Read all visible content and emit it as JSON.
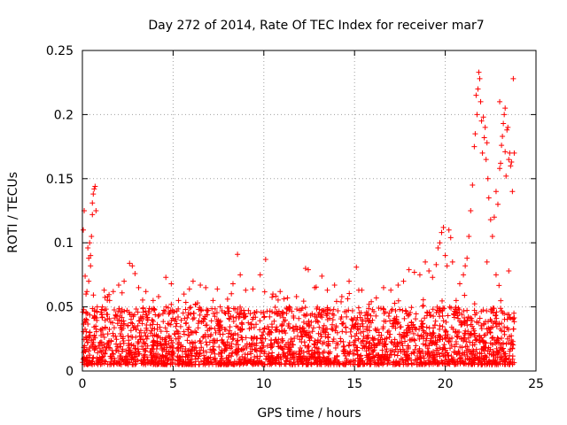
{
  "chart_data": {
    "type": "scatter",
    "title": "Day 272 of 2014, Rate Of TEC Index for receiver mar7",
    "xlabel": "GPS time / hours",
    "ylabel": "ROTI / TECUs",
    "xlim": [
      0,
      25
    ],
    "ylim": [
      0,
      0.25
    ],
    "xticks": [
      0,
      5,
      10,
      15,
      20,
      25
    ],
    "xtick_labels": [
      "0",
      "5",
      "10",
      "15",
      "20",
      "25"
    ],
    "yticks": [
      0,
      0.05,
      0.1,
      0.15,
      0.2,
      0.25
    ],
    "ytick_labels": [
      "0",
      "0.05",
      "0.1",
      "0.15",
      "0.2",
      "0.25"
    ],
    "grid": true,
    "marker": "+",
    "color": "#ff0000",
    "series": [
      {
        "name": "ROTI",
        "points": [
          [
            0.05,
            0.11
          ],
          [
            0.1,
            0.125
          ],
          [
            0.15,
            0.074
          ],
          [
            0.2,
            0.06
          ],
          [
            0.3,
            0.096
          ],
          [
            0.35,
            0.088
          ],
          [
            0.4,
            0.1
          ],
          [
            0.45,
            0.082
          ],
          [
            0.5,
            0.105
          ],
          [
            0.55,
            0.131
          ],
          [
            0.6,
            0.138
          ],
          [
            0.65,
            0.142
          ],
          [
            0.7,
            0.144
          ],
          [
            0.75,
            0.125
          ],
          [
            0.55,
            0.122
          ],
          [
            0.45,
            0.09
          ],
          [
            0.35,
            0.07
          ],
          [
            0.25,
            0.062
          ],
          [
            1.2,
            0.063
          ],
          [
            1.4,
            0.058
          ],
          [
            1.5,
            0.055
          ],
          [
            1.7,
            0.062
          ],
          [
            2.0,
            0.067
          ],
          [
            2.3,
            0.07
          ],
          [
            2.6,
            0.084
          ],
          [
            2.75,
            0.082
          ],
          [
            2.9,
            0.076
          ],
          [
            3.1,
            0.065
          ],
          [
            3.5,
            0.062
          ],
          [
            3.9,
            0.055
          ],
          [
            4.2,
            0.058
          ],
          [
            4.6,
            0.073
          ],
          [
            4.9,
            0.068
          ],
          [
            5.3,
            0.055
          ],
          [
            5.6,
            0.06
          ],
          [
            5.9,
            0.064
          ],
          [
            6.1,
            0.07
          ],
          [
            6.5,
            0.067
          ],
          [
            6.8,
            0.065
          ],
          [
            7.2,
            0.055
          ],
          [
            7.6,
            0.05
          ],
          [
            8.0,
            0.056
          ],
          [
            8.3,
            0.068
          ],
          [
            8.55,
            0.091
          ],
          [
            8.7,
            0.075
          ],
          [
            9.0,
            0.063
          ],
          [
            9.4,
            0.064
          ],
          [
            9.8,
            0.075
          ],
          [
            10.1,
            0.087
          ],
          [
            10.5,
            0.06
          ],
          [
            10.9,
            0.062
          ],
          [
            11.3,
            0.057
          ],
          [
            11.8,
            0.058
          ],
          [
            12.3,
            0.08
          ],
          [
            12.45,
            0.079
          ],
          [
            12.8,
            0.065
          ],
          [
            13.2,
            0.074
          ],
          [
            13.5,
            0.063
          ],
          [
            13.9,
            0.067
          ],
          [
            14.3,
            0.058
          ],
          [
            14.7,
            0.07
          ],
          [
            15.1,
            0.081
          ],
          [
            15.4,
            0.063
          ],
          [
            15.8,
            0.052
          ],
          [
            16.2,
            0.057
          ],
          [
            16.6,
            0.065
          ],
          [
            17.0,
            0.063
          ],
          [
            17.4,
            0.067
          ],
          [
            17.7,
            0.07
          ],
          [
            18.0,
            0.079
          ],
          [
            18.3,
            0.077
          ],
          [
            18.6,
            0.075
          ],
          [
            18.9,
            0.085
          ],
          [
            19.1,
            0.078
          ],
          [
            19.3,
            0.073
          ],
          [
            19.5,
            0.083
          ],
          [
            19.6,
            0.096
          ],
          [
            19.7,
            0.1
          ],
          [
            19.8,
            0.108
          ],
          [
            19.9,
            0.112
          ],
          [
            20.0,
            0.09
          ],
          [
            20.1,
            0.082
          ],
          [
            20.2,
            0.11
          ],
          [
            20.3,
            0.104
          ],
          [
            20.4,
            0.085
          ],
          [
            20.6,
            0.055
          ],
          [
            20.8,
            0.068
          ],
          [
            21.0,
            0.075
          ],
          [
            21.1,
            0.082
          ],
          [
            21.2,
            0.088
          ],
          [
            21.3,
            0.105
          ],
          [
            21.4,
            0.125
          ],
          [
            21.5,
            0.145
          ],
          [
            21.6,
            0.175
          ],
          [
            21.65,
            0.185
          ],
          [
            21.7,
            0.215
          ],
          [
            21.75,
            0.2
          ],
          [
            21.8,
            0.22
          ],
          [
            21.85,
            0.233
          ],
          [
            21.9,
            0.228
          ],
          [
            21.95,
            0.21
          ],
          [
            22.0,
            0.195
          ],
          [
            22.05,
            0.17
          ],
          [
            22.1,
            0.198
          ],
          [
            22.15,
            0.182
          ],
          [
            22.2,
            0.19
          ],
          [
            22.25,
            0.165
          ],
          [
            22.3,
            0.178
          ],
          [
            22.35,
            0.15
          ],
          [
            22.4,
            0.135
          ],
          [
            22.5,
            0.118
          ],
          [
            22.6,
            0.105
          ],
          [
            22.7,
            0.12
          ],
          [
            22.8,
            0.14
          ],
          [
            22.9,
            0.13
          ],
          [
            23.0,
            0.158
          ],
          [
            23.05,
            0.162
          ],
          [
            23.1,
            0.176
          ],
          [
            23.15,
            0.183
          ],
          [
            23.2,
            0.193
          ],
          [
            23.25,
            0.2
          ],
          [
            23.3,
            0.171
          ],
          [
            23.35,
            0.152
          ],
          [
            23.4,
            0.188
          ],
          [
            23.45,
            0.19
          ],
          [
            23.5,
            0.165
          ],
          [
            23.55,
            0.17
          ],
          [
            23.6,
            0.16
          ],
          [
            23.65,
            0.163
          ],
          [
            23.7,
            0.14
          ],
          [
            23.75,
            0.228
          ],
          [
            23.8,
            0.17
          ],
          [
            23.3,
            0.205
          ],
          [
            23.0,
            0.21
          ],
          [
            22.3,
            0.085
          ],
          [
            22.8,
            0.075
          ],
          [
            23.5,
            0.078
          ]
        ]
      }
    ],
    "baseline_band": {
      "description_values": "dense noise floor between roughly 0.005 and 0.05 TECU across 0-23.8 h",
      "x_range": [
        0,
        23.8
      ],
      "y_range": [
        0.005,
        0.05
      ]
    }
  }
}
